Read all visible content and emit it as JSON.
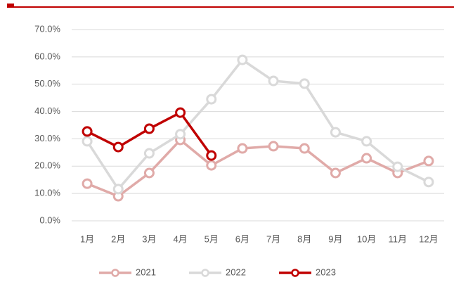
{
  "chart_data": {
    "type": "line",
    "categories": [
      "1月",
      "2月",
      "3月",
      "4月",
      "5月",
      "6月",
      "7月",
      "8月",
      "9月",
      "10月",
      "11月",
      "12月"
    ],
    "series": [
      {
        "name": "2021",
        "color": "#e0aaa8",
        "values": [
          13.6,
          9.0,
          17.5,
          29.6,
          20.3,
          26.5,
          27.3,
          26.5,
          17.5,
          22.9,
          17.5,
          21.9
        ]
      },
      {
        "name": "2022",
        "color": "#d9d9d9",
        "values": [
          29.1,
          11.6,
          24.7,
          31.7,
          44.5,
          58.9,
          51.2,
          50.2,
          32.4,
          29.1,
          19.8,
          14.2
        ]
      },
      {
        "name": "2023",
        "color": "#c00000",
        "values": [
          32.7,
          27.0,
          33.7,
          39.6,
          23.9,
          null,
          null,
          null,
          null,
          null,
          null,
          null
        ]
      }
    ],
    "ylim": [
      0,
      70
    ],
    "yticks": [
      {
        "value": 0,
        "label": "0.0%"
      },
      {
        "value": 10,
        "label": "10.0%"
      },
      {
        "value": 20,
        "label": "20.0%"
      },
      {
        "value": 30,
        "label": "30.0%"
      },
      {
        "value": 40,
        "label": "40.0%"
      },
      {
        "value": 50,
        "label": "50.0%"
      },
      {
        "value": 60,
        "label": "60.0%"
      },
      {
        "value": 70,
        "label": "70.0%"
      }
    ],
    "grid": true,
    "legend": "bottom"
  }
}
